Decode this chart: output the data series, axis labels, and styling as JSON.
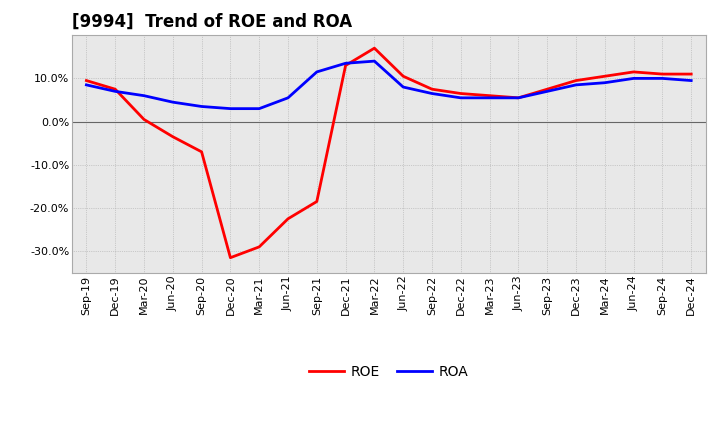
{
  "title": "[9994]  Trend of ROE and ROA",
  "x_labels": [
    "Sep-19",
    "Dec-19",
    "Mar-20",
    "Jun-20",
    "Sep-20",
    "Dec-20",
    "Mar-21",
    "Jun-21",
    "Sep-21",
    "Dec-21",
    "Mar-22",
    "Jun-22",
    "Sep-22",
    "Dec-22",
    "Mar-23",
    "Jun-23",
    "Sep-23",
    "Dec-23",
    "Mar-24",
    "Jun-24",
    "Sep-24",
    "Dec-24"
  ],
  "roe": [
    9.5,
    7.5,
    0.5,
    -3.5,
    -7.0,
    -31.5,
    -29.0,
    -22.5,
    -18.5,
    13.0,
    17.0,
    10.5,
    7.5,
    6.5,
    6.0,
    5.5,
    7.5,
    9.5,
    10.5,
    11.5,
    11.0,
    11.0
  ],
  "roa": [
    8.5,
    7.0,
    6.0,
    4.5,
    3.5,
    3.0,
    3.0,
    5.5,
    11.5,
    13.5,
    14.0,
    8.0,
    6.5,
    5.5,
    5.5,
    5.5,
    7.0,
    8.5,
    9.0,
    10.0,
    10.0,
    9.5
  ],
  "roe_color": "#ff0000",
  "roa_color": "#0000ff",
  "background_color": "#ffffff",
  "plot_bg_color": "#e8e8e8",
  "grid_color": "#aaaaaa",
  "ylim": [
    -35,
    20
  ],
  "yticks": [
    -30.0,
    -20.0,
    -10.0,
    0.0,
    10.0
  ],
  "line_width": 2.0,
  "title_fontsize": 12,
  "tick_fontsize": 8,
  "legend_fontsize": 10
}
